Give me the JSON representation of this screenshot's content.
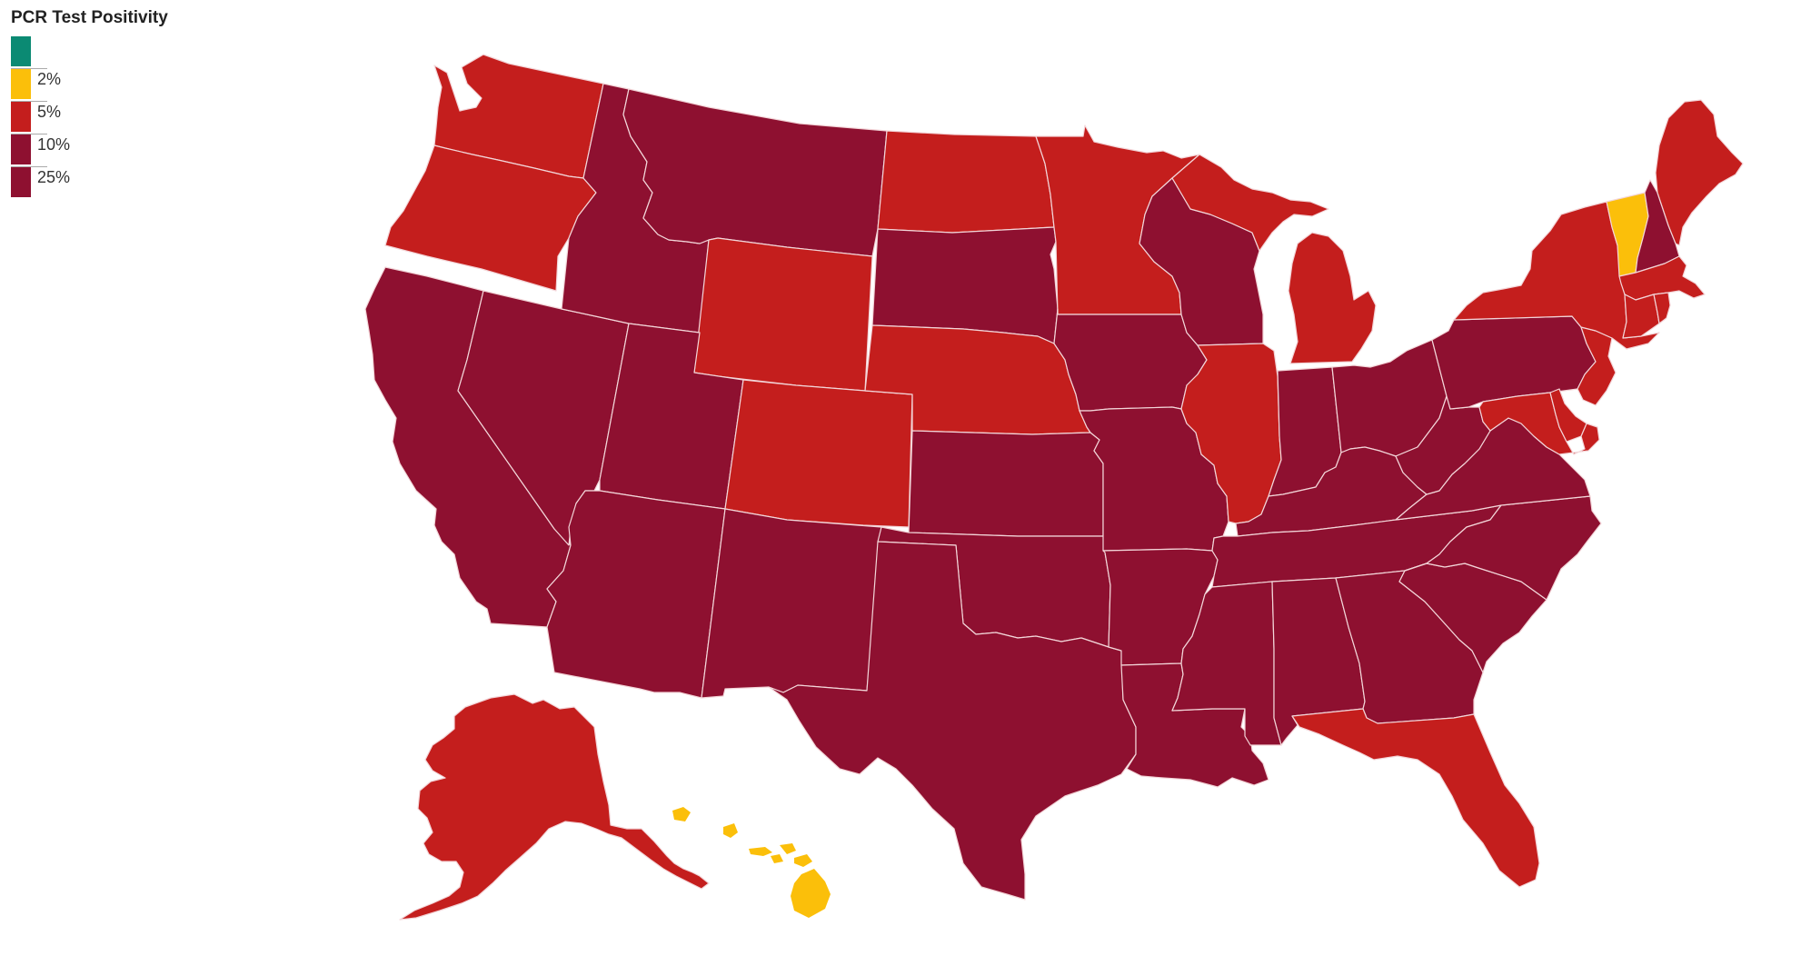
{
  "legend": {
    "title": "PCR Test Positivity",
    "bins": [
      {
        "label": "",
        "color": "#0b8a73"
      },
      {
        "label": "2%",
        "color": "#fbbf0a"
      },
      {
        "label": "5%",
        "color": "#c41e1d"
      },
      {
        "label": "10%",
        "color": "#8e1030"
      },
      {
        "label": "25%",
        "color": "#8e1030"
      }
    ]
  },
  "colors": {
    "lt2": "#0b8a73",
    "c2to5": "#fbbf0a",
    "c5to10": "#c41e1d",
    "c10to25": "#8e1030",
    "c25plus": "#8e1030",
    "border": "#f3d6d9",
    "background": "#ffffff"
  },
  "map": {
    "states": [
      {
        "code": "WA",
        "bin": "5to10"
      },
      {
        "code": "OR",
        "bin": "5to10"
      },
      {
        "code": "CA",
        "bin": "10to25"
      },
      {
        "code": "NV",
        "bin": "10to25"
      },
      {
        "code": "ID",
        "bin": "10to25"
      },
      {
        "code": "MT",
        "bin": "10to25"
      },
      {
        "code": "WY",
        "bin": "5to10"
      },
      {
        "code": "UT",
        "bin": "10to25"
      },
      {
        "code": "AZ",
        "bin": "10to25"
      },
      {
        "code": "CO",
        "bin": "5to10"
      },
      {
        "code": "NM",
        "bin": "10to25"
      },
      {
        "code": "ND",
        "bin": "5to10"
      },
      {
        "code": "SD",
        "bin": "10to25"
      },
      {
        "code": "NE",
        "bin": "5to10"
      },
      {
        "code": "KS",
        "bin": "10to25"
      },
      {
        "code": "OK",
        "bin": "10to25"
      },
      {
        "code": "TX",
        "bin": "10to25"
      },
      {
        "code": "MN",
        "bin": "5to10"
      },
      {
        "code": "IA",
        "bin": "10to25"
      },
      {
        "code": "MO",
        "bin": "10to25"
      },
      {
        "code": "AR",
        "bin": "10to25"
      },
      {
        "code": "LA",
        "bin": "10to25"
      },
      {
        "code": "WI",
        "bin": "10to25"
      },
      {
        "code": "IL",
        "bin": "5to10"
      },
      {
        "code": "MI",
        "bin": "5to10"
      },
      {
        "code": "IN",
        "bin": "10to25"
      },
      {
        "code": "OH",
        "bin": "10to25"
      },
      {
        "code": "KY",
        "bin": "10to25"
      },
      {
        "code": "TN",
        "bin": "10to25"
      },
      {
        "code": "MS",
        "bin": "10to25"
      },
      {
        "code": "AL",
        "bin": "10to25"
      },
      {
        "code": "GA",
        "bin": "10to25"
      },
      {
        "code": "FL",
        "bin": "5to10"
      },
      {
        "code": "SC",
        "bin": "10to25"
      },
      {
        "code": "NC",
        "bin": "10to25"
      },
      {
        "code": "VA",
        "bin": "10to25"
      },
      {
        "code": "WV",
        "bin": "10to25"
      },
      {
        "code": "PA",
        "bin": "10to25"
      },
      {
        "code": "NY",
        "bin": "5to10"
      },
      {
        "code": "NJ",
        "bin": "5to10"
      },
      {
        "code": "DE",
        "bin": "5to10"
      },
      {
        "code": "MD",
        "bin": "5to10"
      },
      {
        "code": "CT",
        "bin": "5to10"
      },
      {
        "code": "RI",
        "bin": "5to10"
      },
      {
        "code": "MA",
        "bin": "5to10"
      },
      {
        "code": "VT",
        "bin": "2to5"
      },
      {
        "code": "NH",
        "bin": "10to25"
      },
      {
        "code": "ME",
        "bin": "5to10"
      },
      {
        "code": "AK",
        "bin": "5to10"
      },
      {
        "code": "HI",
        "bin": "2to5"
      }
    ]
  }
}
